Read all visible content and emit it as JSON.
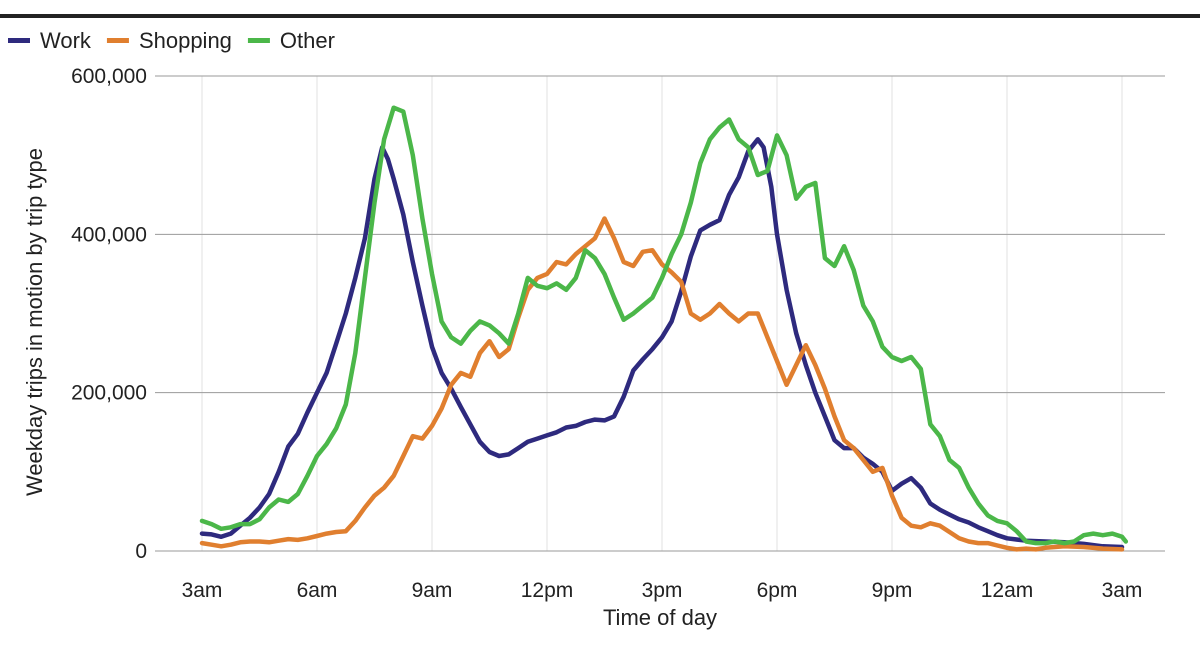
{
  "chart_data": {
    "type": "line",
    "title": "",
    "xlabel": "Time of day",
    "ylabel": "Weekday trips in motion by trip type",
    "x_ticks": [
      "3am",
      "6am",
      "9am",
      "12pm",
      "3pm",
      "6pm",
      "9pm",
      "12am",
      "3am"
    ],
    "x_range_hours": [
      2,
      29
    ],
    "y_ticks": [
      "0",
      "200,000",
      "400,000",
      "600,000"
    ],
    "ylim": [
      0,
      600000
    ],
    "grid": true,
    "legend_position": "top-left",
    "series": [
      {
        "name": "Work",
        "color": "#2e2a7e",
        "points": [
          [
            3.0,
            22000
          ],
          [
            3.25,
            21000
          ],
          [
            3.5,
            18000
          ],
          [
            3.75,
            22000
          ],
          [
            4.0,
            32000
          ],
          [
            4.25,
            42000
          ],
          [
            4.5,
            55000
          ],
          [
            4.75,
            72000
          ],
          [
            5.0,
            100000
          ],
          [
            5.25,
            132000
          ],
          [
            5.5,
            148000
          ],
          [
            5.75,
            175000
          ],
          [
            6.0,
            200000
          ],
          [
            6.25,
            225000
          ],
          [
            6.5,
            262000
          ],
          [
            6.75,
            300000
          ],
          [
            7.0,
            345000
          ],
          [
            7.25,
            395000
          ],
          [
            7.5,
            470000
          ],
          [
            7.7,
            510000
          ],
          [
            7.85,
            495000
          ],
          [
            8.0,
            470000
          ],
          [
            8.25,
            425000
          ],
          [
            8.5,
            365000
          ],
          [
            8.75,
            310000
          ],
          [
            9.0,
            258000
          ],
          [
            9.25,
            225000
          ],
          [
            9.5,
            205000
          ],
          [
            9.75,
            182000
          ],
          [
            10.0,
            160000
          ],
          [
            10.25,
            138000
          ],
          [
            10.5,
            125000
          ],
          [
            10.75,
            120000
          ],
          [
            11.0,
            122000
          ],
          [
            11.25,
            130000
          ],
          [
            11.5,
            138000
          ],
          [
            11.75,
            142000
          ],
          [
            12.0,
            146000
          ],
          [
            12.25,
            150000
          ],
          [
            12.5,
            156000
          ],
          [
            12.75,
            158000
          ],
          [
            13.0,
            163000
          ],
          [
            13.25,
            166000
          ],
          [
            13.5,
            165000
          ],
          [
            13.75,
            170000
          ],
          [
            14.0,
            195000
          ],
          [
            14.25,
            228000
          ],
          [
            14.5,
            242000
          ],
          [
            14.75,
            255000
          ],
          [
            15.0,
            270000
          ],
          [
            15.25,
            290000
          ],
          [
            15.5,
            328000
          ],
          [
            15.75,
            372000
          ],
          [
            16.0,
            405000
          ],
          [
            16.25,
            412000
          ],
          [
            16.5,
            418000
          ],
          [
            16.75,
            450000
          ],
          [
            17.0,
            472000
          ],
          [
            17.25,
            505000
          ],
          [
            17.5,
            520000
          ],
          [
            17.65,
            510000
          ],
          [
            17.85,
            460000
          ],
          [
            18.0,
            400000
          ],
          [
            18.25,
            330000
          ],
          [
            18.5,
            275000
          ],
          [
            18.75,
            235000
          ],
          [
            19.0,
            200000
          ],
          [
            19.25,
            170000
          ],
          [
            19.5,
            140000
          ],
          [
            19.75,
            130000
          ],
          [
            20.0,
            130000
          ],
          [
            20.25,
            118000
          ],
          [
            20.5,
            110000
          ],
          [
            20.75,
            100000
          ],
          [
            21.0,
            76000
          ],
          [
            21.25,
            85000
          ],
          [
            21.5,
            92000
          ],
          [
            21.75,
            80000
          ],
          [
            22.0,
            60000
          ],
          [
            22.25,
            52000
          ],
          [
            22.5,
            46000
          ],
          [
            22.75,
            40000
          ],
          [
            23.0,
            36000
          ],
          [
            23.25,
            30000
          ],
          [
            23.5,
            25000
          ],
          [
            23.75,
            20000
          ],
          [
            24.0,
            16000
          ],
          [
            24.5,
            13000
          ],
          [
            25.0,
            12000
          ],
          [
            25.5,
            11000
          ],
          [
            26.0,
            9000
          ],
          [
            26.5,
            6000
          ],
          [
            27.0,
            5000
          ]
        ]
      },
      {
        "name": "Shopping",
        "color": "#e07f2f",
        "points": [
          [
            3.0,
            10000
          ],
          [
            3.25,
            8000
          ],
          [
            3.5,
            6000
          ],
          [
            3.75,
            8000
          ],
          [
            4.0,
            11000
          ],
          [
            4.25,
            12000
          ],
          [
            4.5,
            12000
          ],
          [
            4.75,
            11000
          ],
          [
            5.0,
            13000
          ],
          [
            5.25,
            15000
          ],
          [
            5.5,
            14000
          ],
          [
            5.75,
            16000
          ],
          [
            6.0,
            19000
          ],
          [
            6.25,
            22000
          ],
          [
            6.5,
            24000
          ],
          [
            6.75,
            25000
          ],
          [
            7.0,
            38000
          ],
          [
            7.25,
            55000
          ],
          [
            7.5,
            70000
          ],
          [
            7.75,
            80000
          ],
          [
            8.0,
            95000
          ],
          [
            8.25,
            120000
          ],
          [
            8.5,
            145000
          ],
          [
            8.75,
            142000
          ],
          [
            9.0,
            158000
          ],
          [
            9.25,
            180000
          ],
          [
            9.5,
            210000
          ],
          [
            9.75,
            225000
          ],
          [
            10.0,
            220000
          ],
          [
            10.25,
            250000
          ],
          [
            10.5,
            265000
          ],
          [
            10.75,
            245000
          ],
          [
            11.0,
            255000
          ],
          [
            11.25,
            295000
          ],
          [
            11.5,
            330000
          ],
          [
            11.75,
            345000
          ],
          [
            12.0,
            350000
          ],
          [
            12.25,
            365000
          ],
          [
            12.5,
            362000
          ],
          [
            12.75,
            375000
          ],
          [
            13.0,
            385000
          ],
          [
            13.25,
            395000
          ],
          [
            13.5,
            420000
          ],
          [
            13.75,
            395000
          ],
          [
            14.0,
            365000
          ],
          [
            14.25,
            360000
          ],
          [
            14.5,
            378000
          ],
          [
            14.75,
            380000
          ],
          [
            15.0,
            362000
          ],
          [
            15.25,
            352000
          ],
          [
            15.5,
            340000
          ],
          [
            15.75,
            300000
          ],
          [
            16.0,
            292000
          ],
          [
            16.25,
            300000
          ],
          [
            16.5,
            312000
          ],
          [
            16.75,
            300000
          ],
          [
            17.0,
            290000
          ],
          [
            17.25,
            300000
          ],
          [
            17.5,
            300000
          ],
          [
            17.75,
            270000
          ],
          [
            18.0,
            240000
          ],
          [
            18.25,
            210000
          ],
          [
            18.5,
            235000
          ],
          [
            18.75,
            260000
          ],
          [
            19.0,
            235000
          ],
          [
            19.25,
            205000
          ],
          [
            19.5,
            170000
          ],
          [
            19.75,
            140000
          ],
          [
            20.0,
            130000
          ],
          [
            20.25,
            115000
          ],
          [
            20.5,
            100000
          ],
          [
            20.75,
            105000
          ],
          [
            21.0,
            70000
          ],
          [
            21.25,
            42000
          ],
          [
            21.5,
            32000
          ],
          [
            21.75,
            30000
          ],
          [
            22.0,
            35000
          ],
          [
            22.25,
            32000
          ],
          [
            22.5,
            24000
          ],
          [
            22.75,
            16000
          ],
          [
            23.0,
            12000
          ],
          [
            23.25,
            10000
          ],
          [
            23.5,
            10000
          ],
          [
            23.75,
            7000
          ],
          [
            24.0,
            4000
          ],
          [
            24.25,
            2000
          ],
          [
            24.5,
            3000
          ],
          [
            24.75,
            2000
          ],
          [
            25.0,
            4000
          ],
          [
            25.5,
            6000
          ],
          [
            26.0,
            5000
          ],
          [
            26.5,
            3000
          ],
          [
            27.0,
            2000
          ]
        ]
      },
      {
        "name": "Other",
        "color": "#4bb749",
        "points": [
          [
            3.0,
            38000
          ],
          [
            3.25,
            34000
          ],
          [
            3.5,
            28000
          ],
          [
            3.75,
            30000
          ],
          [
            4.0,
            34000
          ],
          [
            4.25,
            34000
          ],
          [
            4.5,
            40000
          ],
          [
            4.75,
            55000
          ],
          [
            5.0,
            65000
          ],
          [
            5.25,
            62000
          ],
          [
            5.5,
            72000
          ],
          [
            5.75,
            95000
          ],
          [
            6.0,
            120000
          ],
          [
            6.25,
            135000
          ],
          [
            6.5,
            155000
          ],
          [
            6.75,
            185000
          ],
          [
            7.0,
            250000
          ],
          [
            7.25,
            345000
          ],
          [
            7.5,
            440000
          ],
          [
            7.75,
            520000
          ],
          [
            8.0,
            560000
          ],
          [
            8.25,
            555000
          ],
          [
            8.5,
            500000
          ],
          [
            8.75,
            420000
          ],
          [
            9.0,
            350000
          ],
          [
            9.25,
            290000
          ],
          [
            9.5,
            270000
          ],
          [
            9.75,
            262000
          ],
          [
            10.0,
            278000
          ],
          [
            10.25,
            290000
          ],
          [
            10.5,
            285000
          ],
          [
            10.75,
            275000
          ],
          [
            11.0,
            262000
          ],
          [
            11.25,
            300000
          ],
          [
            11.5,
            345000
          ],
          [
            11.75,
            335000
          ],
          [
            12.0,
            332000
          ],
          [
            12.25,
            338000
          ],
          [
            12.5,
            330000
          ],
          [
            12.75,
            345000
          ],
          [
            13.0,
            380000
          ],
          [
            13.25,
            370000
          ],
          [
            13.5,
            350000
          ],
          [
            13.75,
            320000
          ],
          [
            14.0,
            292000
          ],
          [
            14.25,
            300000
          ],
          [
            14.5,
            310000
          ],
          [
            14.75,
            320000
          ],
          [
            15.0,
            345000
          ],
          [
            15.25,
            375000
          ],
          [
            15.5,
            400000
          ],
          [
            15.75,
            440000
          ],
          [
            16.0,
            490000
          ],
          [
            16.25,
            520000
          ],
          [
            16.5,
            535000
          ],
          [
            16.75,
            545000
          ],
          [
            17.0,
            520000
          ],
          [
            17.25,
            510000
          ],
          [
            17.5,
            475000
          ],
          [
            17.75,
            480000
          ],
          [
            18.0,
            525000
          ],
          [
            18.25,
            500000
          ],
          [
            18.5,
            445000
          ],
          [
            18.75,
            460000
          ],
          [
            19.0,
            465000
          ],
          [
            19.25,
            370000
          ],
          [
            19.5,
            360000
          ],
          [
            19.75,
            385000
          ],
          [
            20.0,
            355000
          ],
          [
            20.25,
            310000
          ],
          [
            20.5,
            290000
          ],
          [
            20.75,
            258000
          ],
          [
            21.0,
            245000
          ],
          [
            21.25,
            240000
          ],
          [
            21.5,
            245000
          ],
          [
            21.75,
            230000
          ],
          [
            22.0,
            160000
          ],
          [
            22.25,
            145000
          ],
          [
            22.5,
            115000
          ],
          [
            22.75,
            105000
          ],
          [
            23.0,
            80000
          ],
          [
            23.25,
            60000
          ],
          [
            23.5,
            45000
          ],
          [
            23.75,
            38000
          ],
          [
            24.0,
            35000
          ],
          [
            24.25,
            25000
          ],
          [
            24.5,
            12000
          ],
          [
            24.75,
            10000
          ],
          [
            25.0,
            10000
          ],
          [
            25.25,
            12000
          ],
          [
            25.5,
            10000
          ],
          [
            25.75,
            12000
          ],
          [
            26.0,
            20000
          ],
          [
            26.25,
            22000
          ],
          [
            26.5,
            20000
          ],
          [
            26.75,
            22000
          ],
          [
            27.0,
            18000
          ],
          [
            27.1,
            12000
          ]
        ]
      }
    ]
  }
}
